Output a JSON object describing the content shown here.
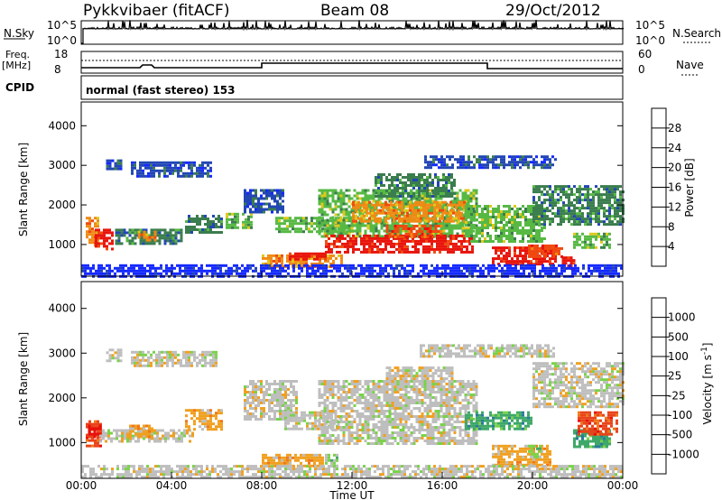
{
  "header": {
    "station": "Pykkvibaer (fitACF)",
    "beam": "Beam 08",
    "date": "29/Oct/2012"
  },
  "top_panels": {
    "nsky_label": "N.Sky",
    "nsky_ticks": [
      "10^5",
      "10^0"
    ],
    "nsearch_label": "N.Search",
    "nsearch_ticks": [
      "10^5",
      "10^0"
    ],
    "freq_label": "Freq.",
    "freq_unit": "[MHz]",
    "freq_ticks": [
      "18",
      "8"
    ],
    "nave_label": "Nave",
    "nave_ticks": [
      "60",
      "0"
    ],
    "cpid_label": "CPID",
    "cpid_text": "normal (fast stereo) 153"
  },
  "chart_data": [
    {
      "type": "heatmap",
      "name": "power",
      "ylabel": "Slant Range [km]",
      "yticks": [
        "1000",
        "2000",
        "3000",
        "4000"
      ],
      "ylim": [
        200,
        4600
      ],
      "xlim": [
        0,
        24
      ],
      "colorbar": {
        "label": "Power [dB]",
        "ticks": [
          "4",
          "8",
          "12",
          "16",
          "20",
          "24",
          "28"
        ],
        "colors": [
          "#1428ff",
          "#2246b4",
          "#3a7d4e",
          "#57b944",
          "#e0c81c",
          "#f08a14",
          "#ef4a10",
          "#e8140c"
        ]
      },
      "echo_regions": [
        {
          "x0": 1.1,
          "x1": 1.8,
          "y0": 2900,
          "y1": 3150,
          "level": 1
        },
        {
          "x0": 2.2,
          "x1": 5.8,
          "y0": 2750,
          "y1": 3100,
          "level": 1
        },
        {
          "x0": 15.2,
          "x1": 21.0,
          "y0": 2950,
          "y1": 3250,
          "level": 1
        },
        {
          "x0": 0.2,
          "x1": 0.8,
          "y0": 1000,
          "y1": 1700,
          "level": 5
        },
        {
          "x0": 0.6,
          "x1": 1.4,
          "y0": 900,
          "y1": 1400,
          "level": 7
        },
        {
          "x0": 1.5,
          "x1": 4.5,
          "y0": 1000,
          "y1": 1400,
          "level": 2
        },
        {
          "x0": 2.5,
          "x1": 3.3,
          "y0": 1100,
          "y1": 1350,
          "level": 5
        },
        {
          "x0": 4.6,
          "x1": 6.2,
          "y0": 1300,
          "y1": 1750,
          "level": 2
        },
        {
          "x0": 6.4,
          "x1": 7.5,
          "y0": 1400,
          "y1": 1800,
          "level": 3
        },
        {
          "x0": 7.2,
          "x1": 9.0,
          "y0": 1800,
          "y1": 2400,
          "level": 1
        },
        {
          "x0": 8.6,
          "x1": 12.0,
          "y0": 1300,
          "y1": 1700,
          "level": 3
        },
        {
          "x0": 8.0,
          "x1": 11.5,
          "y0": 450,
          "y1": 750,
          "level": 5
        },
        {
          "x0": 9.2,
          "x1": 10.8,
          "y0": 600,
          "y1": 800,
          "level": 7
        },
        {
          "x0": 10.5,
          "x1": 17.5,
          "y0": 1200,
          "y1": 2400,
          "level": 3
        },
        {
          "x0": 12.0,
          "x1": 17.0,
          "y0": 1600,
          "y1": 2100,
          "level": 5
        },
        {
          "x0": 10.8,
          "x1": 17.4,
          "y0": 800,
          "y1": 1250,
          "level": 7
        },
        {
          "x0": 13.5,
          "x1": 16.0,
          "y0": 1200,
          "y1": 1500,
          "level": 6
        },
        {
          "x0": 13.0,
          "x1": 16.5,
          "y0": 2200,
          "y1": 2800,
          "level": 2
        },
        {
          "x0": 17.0,
          "x1": 20.5,
          "y0": 1100,
          "y1": 2000,
          "level": 3
        },
        {
          "x0": 18.2,
          "x1": 21.0,
          "y0": 500,
          "y1": 950,
          "level": 7
        },
        {
          "x0": 19.8,
          "x1": 21.3,
          "y0": 700,
          "y1": 1000,
          "level": 6
        },
        {
          "x0": 20.0,
          "x1": 24.0,
          "y0": 1500,
          "y1": 2500,
          "level": 2
        },
        {
          "x0": 21.8,
          "x1": 23.4,
          "y0": 900,
          "y1": 1300,
          "level": 3
        },
        {
          "x0": 21.3,
          "x1": 21.8,
          "y0": 400,
          "y1": 700,
          "level": 7
        },
        {
          "x0": 0,
          "x1": 24,
          "y0": 200,
          "y1": 500,
          "level": 0
        }
      ]
    },
    {
      "type": "heatmap",
      "name": "velocity",
      "ylabel": "Slant Range [km]",
      "yticks": [
        "1000",
        "2000",
        "3000",
        "4000"
      ],
      "ylim": [
        200,
        4600
      ],
      "xlim": [
        0,
        24
      ],
      "xlabel": "Time UT",
      "xticks": [
        "00:00",
        "04:00",
        "08:00",
        "12:00",
        "16:00",
        "20:00",
        "00:00"
      ],
      "colorbar": {
        "label": "Velocity [m s",
        "label_sup": "-1",
        "ticks": [
          "1000",
          "500",
          "100",
          "25",
          "-25",
          "-100",
          "-500",
          "-1000"
        ],
        "colors": [
          "#2a44c8",
          "#2a7a9c",
          "#3ea868",
          "#7ad24a",
          "#bebebe",
          "#f0a020",
          "#f07818",
          "#e8441a",
          "#e8100c"
        ]
      },
      "echo_regions": [
        {
          "x0": 1.1,
          "x1": 1.8,
          "y0": 2850,
          "y1": 3100,
          "level": 4
        },
        {
          "x0": 2.2,
          "x1": 6.0,
          "y0": 2700,
          "y1": 3050,
          "level": 4
        },
        {
          "x0": 15.0,
          "x1": 21.0,
          "y0": 2950,
          "y1": 3200,
          "level": 4
        },
        {
          "x0": 0.2,
          "x1": 0.9,
          "y0": 900,
          "y1": 1500,
          "level": 7
        },
        {
          "x0": 0.3,
          "x1": 0.8,
          "y0": 1100,
          "y1": 1400,
          "level": 8
        },
        {
          "x0": 0.8,
          "x1": 5.0,
          "y0": 1000,
          "y1": 1300,
          "level": 4
        },
        {
          "x0": 2.0,
          "x1": 3.2,
          "y0": 1100,
          "y1": 1400,
          "level": 5
        },
        {
          "x0": 4.6,
          "x1": 6.2,
          "y0": 1300,
          "y1": 1750,
          "level": 5
        },
        {
          "x0": 7.2,
          "x1": 9.5,
          "y0": 1500,
          "y1": 2400,
          "level": 4
        },
        {
          "x0": 9.0,
          "x1": 11.5,
          "y0": 1300,
          "y1": 1700,
          "level": 4
        },
        {
          "x0": 8.0,
          "x1": 10.8,
          "y0": 450,
          "y1": 750,
          "level": 5
        },
        {
          "x0": 10.8,
          "x1": 11.3,
          "y0": 500,
          "y1": 750,
          "level": 3
        },
        {
          "x0": 10.5,
          "x1": 17.5,
          "y0": 1000,
          "y1": 2400,
          "level": 4
        },
        {
          "x0": 13.5,
          "x1": 16.5,
          "y0": 2200,
          "y1": 2700,
          "level": 4
        },
        {
          "x0": 17.0,
          "x1": 20.0,
          "y0": 1300,
          "y1": 1700,
          "level": 2
        },
        {
          "x0": 18.2,
          "x1": 20.8,
          "y0": 500,
          "y1": 950,
          "level": 5
        },
        {
          "x0": 19.8,
          "x1": 20.3,
          "y0": 700,
          "y1": 950,
          "level": 3
        },
        {
          "x0": 20.0,
          "x1": 24.0,
          "y0": 1800,
          "y1": 2800,
          "level": 4
        },
        {
          "x0": 21.8,
          "x1": 23.4,
          "y0": 900,
          "y1": 1300,
          "level": 2
        },
        {
          "x0": 22.0,
          "x1": 23.8,
          "y0": 1200,
          "y1": 1700,
          "level": 7
        },
        {
          "x0": 0,
          "x1": 24,
          "y0": 200,
          "y1": 500,
          "level": 4
        }
      ]
    }
  ]
}
